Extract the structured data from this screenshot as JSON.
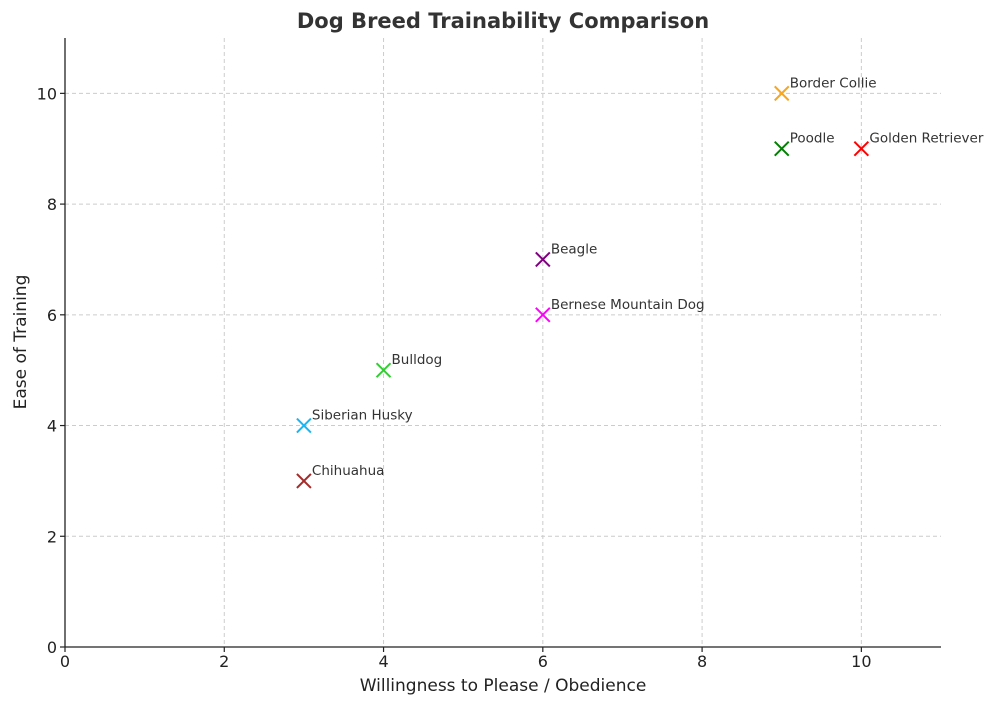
{
  "chart_data": {
    "type": "scatter",
    "title": "Dog Breed Trainability Comparison",
    "xlabel": "Willingness to Please / Obedience",
    "ylabel": "Ease of Training",
    "xlim": [
      0,
      11
    ],
    "ylim": [
      0,
      11
    ],
    "xticks": [
      0,
      2,
      4,
      6,
      8,
      10
    ],
    "yticks": [
      0,
      2,
      4,
      6,
      8,
      10
    ],
    "grid": true,
    "marker": "x",
    "points": [
      {
        "name": "Border Collie",
        "x": 9,
        "y": 10,
        "color": "#f5a623"
      },
      {
        "name": "Poodle",
        "x": 9,
        "y": 9,
        "color": "#008000"
      },
      {
        "name": "Golden Retriever",
        "x": 10,
        "y": 9,
        "color": "#ff0000"
      },
      {
        "name": "Beagle",
        "x": 6,
        "y": 7,
        "color": "#800080"
      },
      {
        "name": "Bernese Mountain Dog",
        "x": 6,
        "y": 6,
        "color": "#ff00ff"
      },
      {
        "name": "Bulldog",
        "x": 4,
        "y": 5,
        "color": "#32cd32"
      },
      {
        "name": "Siberian Husky",
        "x": 3,
        "y": 4,
        "color": "#1eb4f0"
      },
      {
        "name": "Chihuahua",
        "x": 3,
        "y": 3,
        "color": "#a52a2a"
      }
    ]
  }
}
